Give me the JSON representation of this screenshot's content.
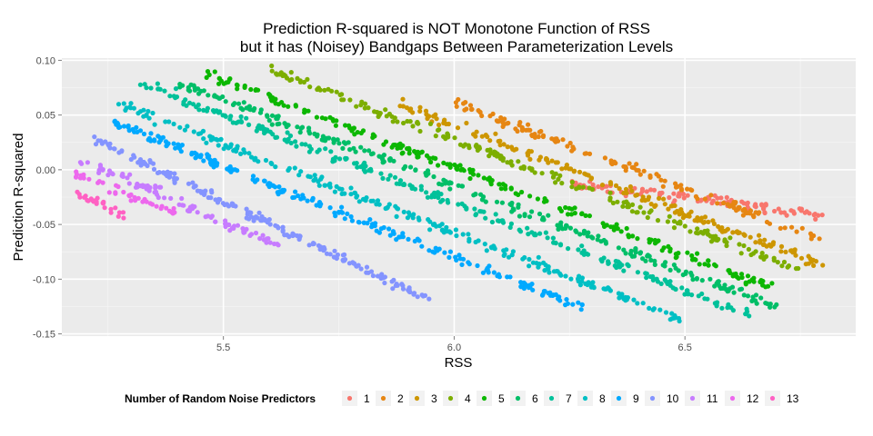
{
  "chart_data": {
    "type": "scatter",
    "title_lines": [
      "Prediction R-squared is NOT Monotone Function of RSS",
      "but it has (Noisey) Bandgaps Between Parameterization Levels"
    ],
    "xlabel": "RSS",
    "ylabel": "Prediction R-squared",
    "xlim": [
      5.15,
      6.87
    ],
    "ylim": [
      -0.152,
      0.102
    ],
    "x_ticks": [
      5.5,
      6.0,
      6.5
    ],
    "x_tick_labels": [
      "5.5",
      "6.0",
      "6.5"
    ],
    "y_ticks": [
      -0.15,
      -0.1,
      -0.05,
      0.0,
      0.05,
      0.1
    ],
    "y_tick_labels": [
      "-0.15",
      "-0.10",
      "-0.05",
      "0.00",
      "0.05",
      "0.10"
    ],
    "grid": true,
    "legend_placement": "bottom",
    "legend_title": "Number of Random Noise Predictors",
    "series": [
      {
        "name": "1",
        "color": "#F8766D",
        "x_range": [
          6.25,
          6.8
        ],
        "y_start": -0.012,
        "y_end": -0.042,
        "points": 110
      },
      {
        "name": "2",
        "color": "#E68613",
        "x_range": [
          6.0,
          6.8
        ],
        "y_start": 0.062,
        "y_end": -0.065,
        "points": 140
      },
      {
        "name": "3",
        "color": "#CD9600",
        "x_range": [
          5.88,
          6.8
        ],
        "y_start": 0.06,
        "y_end": -0.087,
        "points": 170
      },
      {
        "name": "4",
        "color": "#7CAE00",
        "x_range": [
          5.6,
          6.75
        ],
        "y_start": 0.092,
        "y_end": -0.092,
        "points": 200
      },
      {
        "name": "5",
        "color": "#0CB702",
        "x_range": [
          5.45,
          6.7
        ],
        "y_start": 0.09,
        "y_end": -0.11,
        "points": 220
      },
      {
        "name": "6",
        "color": "#00BE67",
        "x_range": [
          5.4,
          6.7
        ],
        "y_start": 0.08,
        "y_end": -0.125,
        "points": 240
      },
      {
        "name": "7",
        "color": "#00C19A",
        "x_range": [
          5.32,
          6.65
        ],
        "y_start": 0.08,
        "y_end": -0.135,
        "points": 240
      },
      {
        "name": "8",
        "color": "#00BFC4",
        "x_range": [
          5.27,
          6.5
        ],
        "y_start": 0.06,
        "y_end": -0.138,
        "points": 230
      },
      {
        "name": "9",
        "color": "#00A9FF",
        "x_range": [
          5.25,
          6.3
        ],
        "y_start": 0.045,
        "y_end": -0.13,
        "points": 220
      },
      {
        "name": "10",
        "color": "#8494FF",
        "x_range": [
          5.22,
          5.95
        ],
        "y_start": 0.028,
        "y_end": -0.12,
        "points": 190
      },
      {
        "name": "11",
        "color": "#C77CFF",
        "x_range": [
          5.19,
          5.62
        ],
        "y_start": 0.01,
        "y_end": -0.07,
        "points": 90
      },
      {
        "name": "12",
        "color": "#ED68ED",
        "x_range": [
          5.18,
          5.4
        ],
        "y_start": -0.005,
        "y_end": -0.04,
        "points": 40
      },
      {
        "name": "13",
        "color": "#FF61C3",
        "x_range": [
          5.17,
          5.3
        ],
        "y_start": -0.018,
        "y_end": -0.045,
        "points": 25
      }
    ]
  }
}
